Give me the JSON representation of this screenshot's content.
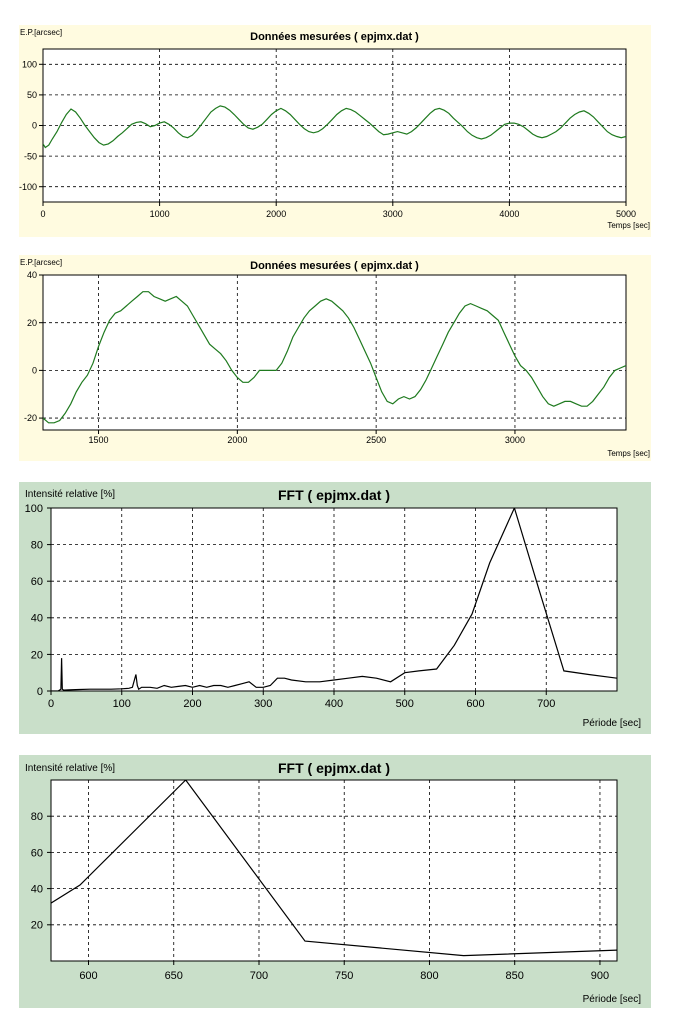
{
  "colors": {
    "panel_yellow": "#fffbe0",
    "panel_green": "#c9dfc9",
    "ep_line": "#1f7a1f",
    "fft_line": "#000000"
  },
  "chart_data": [
    {
      "type": "line",
      "title": "Données mesurées ( epjmx.dat )",
      "ylabel": "E.P.[arcsec]",
      "xlabel": "Temps [sec]",
      "xlim": [
        0,
        5000
      ],
      "ylim": [
        -125,
        125
      ],
      "xticks": [
        0,
        1000,
        2000,
        3000,
        4000,
        5000
      ],
      "yticks": [
        100,
        50,
        0,
        -50,
        -100
      ],
      "grid": true,
      "series": [
        {
          "x": [
            0,
            20,
            50,
            80,
            120,
            160,
            200,
            240,
            280,
            320,
            360,
            400,
            440,
            480,
            520,
            560,
            600,
            640,
            680,
            720,
            760,
            800,
            840,
            880,
            920,
            960,
            1000,
            1040,
            1080,
            1120,
            1160,
            1200,
            1240,
            1280,
            1320,
            1360,
            1400,
            1440,
            1480,
            1520,
            1560,
            1600,
            1640,
            1680,
            1720,
            1760,
            1800,
            1840,
            1880,
            1920,
            1960,
            2000,
            2040,
            2080,
            2120,
            2160,
            2200,
            2240,
            2280,
            2320,
            2360,
            2400,
            2440,
            2480,
            2520,
            2560,
            2600,
            2640,
            2680,
            2720,
            2760,
            2800,
            2840,
            2880,
            2920,
            2960,
            3000,
            3040,
            3080,
            3120,
            3160,
            3200,
            3240,
            3280,
            3320,
            3360,
            3400,
            3440,
            3480,
            3520,
            3560,
            3600,
            3640,
            3680,
            3720,
            3760,
            3800,
            3840,
            3880,
            3920,
            3960,
            4000,
            4040,
            4080,
            4120,
            4160,
            4200,
            4240,
            4280,
            4320,
            4360,
            4400,
            4440,
            4480,
            4520,
            4560,
            4600,
            4640,
            4680,
            4720,
            4760,
            4800,
            4840,
            4880,
            4920,
            4960,
            5000
          ],
          "y": [
            -30,
            -36,
            -32,
            -22,
            -10,
            5,
            18,
            27,
            22,
            12,
            0,
            -10,
            -20,
            -28,
            -32,
            -30,
            -25,
            -18,
            -12,
            -5,
            2,
            5,
            6,
            3,
            -2,
            0,
            4,
            6,
            2,
            -4,
            -12,
            -18,
            -20,
            -16,
            -8,
            2,
            12,
            22,
            28,
            32,
            30,
            25,
            18,
            10,
            2,
            -4,
            -6,
            -3,
            2,
            10,
            18,
            24,
            28,
            24,
            18,
            10,
            2,
            -5,
            -10,
            -12,
            -10,
            -5,
            2,
            10,
            18,
            24,
            28,
            26,
            22,
            16,
            10,
            4,
            -3,
            -10,
            -15,
            -14,
            -12,
            -10,
            -12,
            -14,
            -10,
            -4,
            4,
            12,
            20,
            26,
            28,
            25,
            20,
            12,
            5,
            -2,
            -10,
            -16,
            -20,
            -22,
            -20,
            -16,
            -10,
            -4,
            2,
            4,
            4,
            2,
            -2,
            -8,
            -14,
            -18,
            -20,
            -18,
            -14,
            -10,
            -4,
            4,
            12,
            18,
            22,
            24,
            20,
            14,
            6,
            -2,
            -10,
            -15,
            -18,
            -20,
            -18
          ]
        }
      ]
    },
    {
      "type": "line",
      "title": "Données mesurées ( epjmx.dat )",
      "ylabel": "E.P.[arcsec]",
      "xlabel": "Temps [sec]",
      "xlim": [
        1300,
        3400
      ],
      "ylim": [
        -25,
        40
      ],
      "xticks": [
        1500,
        2000,
        2500,
        3000
      ],
      "yticks": [
        40,
        20,
        0,
        -20
      ],
      "grid": true,
      "series": [
        {
          "x": [
            1300,
            1320,
            1340,
            1360,
            1380,
            1400,
            1420,
            1440,
            1460,
            1480,
            1500,
            1520,
            1540,
            1560,
            1580,
            1600,
            1620,
            1640,
            1660,
            1680,
            1700,
            1720,
            1740,
            1760,
            1780,
            1800,
            1820,
            1840,
            1860,
            1880,
            1900,
            1920,
            1940,
            1960,
            1980,
            2000,
            2020,
            2040,
            2060,
            2080,
            2100,
            2120,
            2140,
            2160,
            2180,
            2200,
            2220,
            2240,
            2260,
            2280,
            2300,
            2320,
            2340,
            2360,
            2380,
            2400,
            2420,
            2440,
            2460,
            2480,
            2500,
            2520,
            2540,
            2560,
            2580,
            2600,
            2620,
            2640,
            2660,
            2680,
            2700,
            2720,
            2740,
            2760,
            2780,
            2800,
            2820,
            2840,
            2860,
            2880,
            2900,
            2920,
            2940,
            2960,
            2980,
            3000,
            3020,
            3040,
            3060,
            3080,
            3100,
            3120,
            3140,
            3160,
            3180,
            3200,
            3220,
            3240,
            3260,
            3280,
            3300,
            3320,
            3340,
            3360,
            3380,
            3400
          ],
          "y": [
            -20,
            -22,
            -22,
            -21,
            -18,
            -14,
            -9,
            -5,
            -2,
            3,
            10,
            16,
            21,
            24,
            25,
            27,
            29,
            31,
            33,
            33,
            31,
            30,
            29,
            30,
            31,
            29,
            27,
            23,
            19,
            15,
            11,
            9,
            7,
            4,
            0,
            -3,
            -5,
            -5,
            -3,
            0,
            0,
            0,
            0,
            3,
            8,
            14,
            18,
            22,
            25,
            27,
            29,
            30,
            29,
            27,
            25,
            22,
            18,
            13,
            8,
            3,
            -3,
            -9,
            -13,
            -14,
            -12,
            -11,
            -12,
            -11,
            -8,
            -4,
            1,
            6,
            11,
            16,
            20,
            24,
            27,
            28,
            27,
            26,
            25,
            23,
            21,
            16,
            11,
            6,
            2,
            0,
            -3,
            -7,
            -11,
            -14,
            -15,
            -14,
            -13,
            -13,
            -14,
            -15,
            -15,
            -13,
            -10,
            -7,
            -3,
            0,
            1,
            2
          ]
        }
      ]
    },
    {
      "type": "line",
      "title": "FFT ( epjmx.dat )",
      "ylabel": "Intensité relative [%]",
      "xlabel": "Période [sec]",
      "xlim": [
        0,
        800
      ],
      "ylim": [
        0,
        100
      ],
      "xticks": [
        0,
        100,
        200,
        300,
        400,
        500,
        600,
        700
      ],
      "yticks": [
        100,
        80,
        60,
        40,
        20,
        0
      ],
      "grid": true,
      "series": [
        {
          "x": [
            0,
            10,
            14,
            15,
            16,
            18,
            25,
            40,
            55,
            70,
            85,
            100,
            110,
            115,
            120,
            122,
            124,
            128,
            140,
            150,
            160,
            170,
            180,
            190,
            200,
            210,
            220,
            230,
            240,
            250,
            260,
            270,
            280,
            290,
            300,
            310,
            320,
            330,
            340,
            360,
            380,
            400,
            420,
            440,
            460,
            480,
            500,
            520,
            545,
            570,
            595,
            620,
            655,
            690,
            725,
            760,
            800
          ],
          "y": [
            0,
            0,
            1,
            18,
            1,
            0.5,
            0.6,
            0.8,
            1,
            1,
            1,
            1.2,
            1.5,
            2,
            9,
            3,
            1,
            2,
            2,
            1.5,
            3,
            2,
            2.5,
            3,
            2,
            3,
            2,
            3,
            3,
            2,
            3,
            4,
            5,
            2,
            2,
            3,
            7,
            7,
            6,
            5,
            5,
            6,
            7,
            8,
            7,
            5,
            10,
            11,
            12,
            25,
            42,
            70,
            100,
            55,
            11,
            9,
            7
          ]
        }
      ]
    },
    {
      "type": "line",
      "title": "FFT ( epjmx.dat )",
      "ylabel": "Intensité relative [%]",
      "xlabel": "Période [sec]",
      "xlim": [
        578,
        910
      ],
      "ylim": [
        0,
        100
      ],
      "xticks": [
        600,
        650,
        700,
        750,
        800,
        850,
        900
      ],
      "yticks": [
        80,
        60,
        40,
        20
      ],
      "grid": true,
      "series": [
        {
          "x": [
            578,
            595,
            657,
            727,
            820,
            910
          ],
          "y": [
            32,
            42,
            100,
            11,
            3,
            6
          ]
        }
      ]
    }
  ]
}
